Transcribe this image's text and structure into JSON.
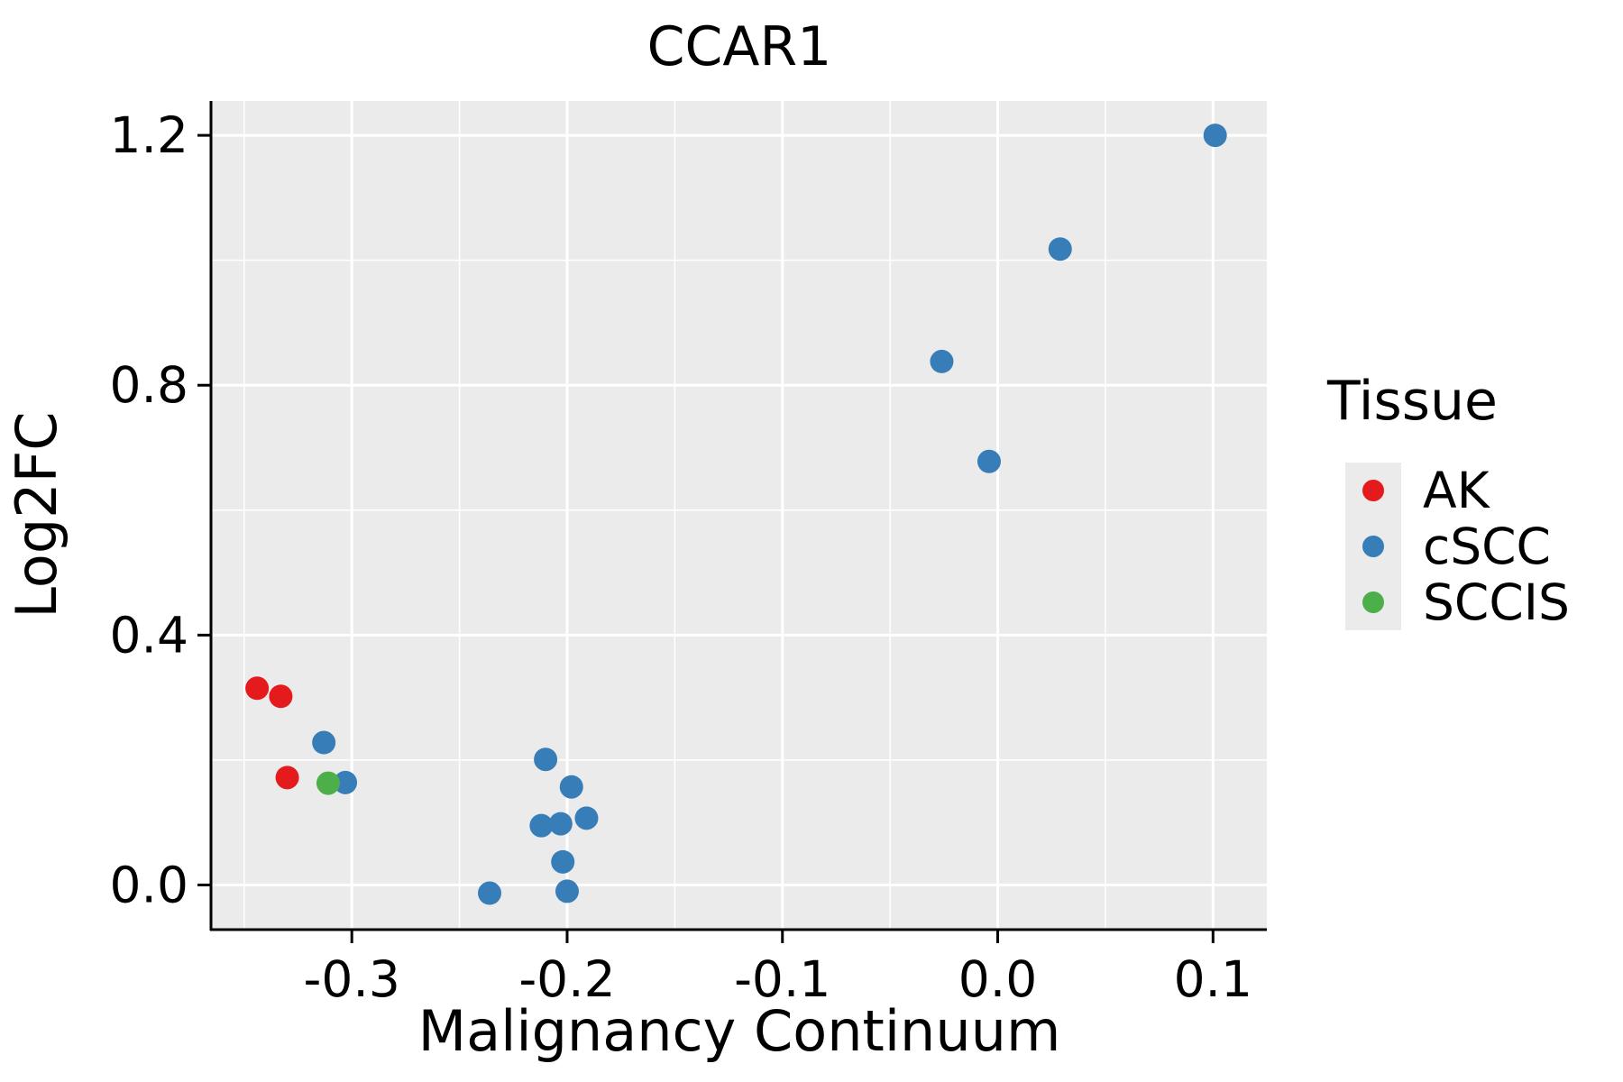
{
  "chart_data": {
    "type": "scatter",
    "title": "CCAR1",
    "xlabel": "Malignancy Continuum",
    "ylabel": "Log2FC",
    "xlim": [
      -0.365,
      0.125
    ],
    "ylim": [
      -0.07,
      1.255
    ],
    "x_ticks": {
      "values": [
        -0.3,
        -0.2,
        -0.1,
        0.0,
        0.1
      ],
      "labels": [
        "-0.3",
        "-0.2",
        "-0.1",
        "0.0",
        "0.1"
      ]
    },
    "y_ticks": {
      "values": [
        0.0,
        0.4,
        0.8,
        1.2
      ],
      "labels": [
        "0.0",
        "0.4",
        "0.8",
        "1.2"
      ]
    },
    "x_minor_ticks": [
      -0.35,
      -0.25,
      -0.15,
      -0.05,
      0.05
    ],
    "y_minor_ticks": [
      0.2,
      0.6,
      1.0
    ],
    "grid": true,
    "panel_background": "#ebebeb",
    "gridline_color": "#ffffff",
    "axis_color": "#000000",
    "legend": {
      "title": "Tissue",
      "position": "right",
      "key_background": "#ebebeb"
    },
    "series": [
      {
        "name": "AK",
        "color": "#e41a1c",
        "points": [
          [
            -0.344,
            0.315
          ],
          [
            -0.333,
            0.302
          ],
          [
            -0.33,
            0.172
          ]
        ]
      },
      {
        "name": "cSCC",
        "color": "#377eb8",
        "points": [
          [
            -0.313,
            0.228
          ],
          [
            -0.303,
            0.164
          ],
          [
            -0.21,
            0.201
          ],
          [
            -0.198,
            0.157
          ],
          [
            -0.212,
            0.095
          ],
          [
            -0.203,
            0.098
          ],
          [
            -0.191,
            0.107
          ],
          [
            -0.202,
            0.037
          ],
          [
            -0.2,
            -0.01
          ],
          [
            -0.236,
            -0.013
          ],
          [
            -0.026,
            0.838
          ],
          [
            -0.004,
            0.678
          ],
          [
            0.029,
            1.018
          ],
          [
            0.101,
            1.2
          ]
        ]
      },
      {
        "name": "SCCIS",
        "color": "#4daf4a",
        "points": [
          [
            -0.311,
            0.163
          ]
        ]
      }
    ]
  }
}
